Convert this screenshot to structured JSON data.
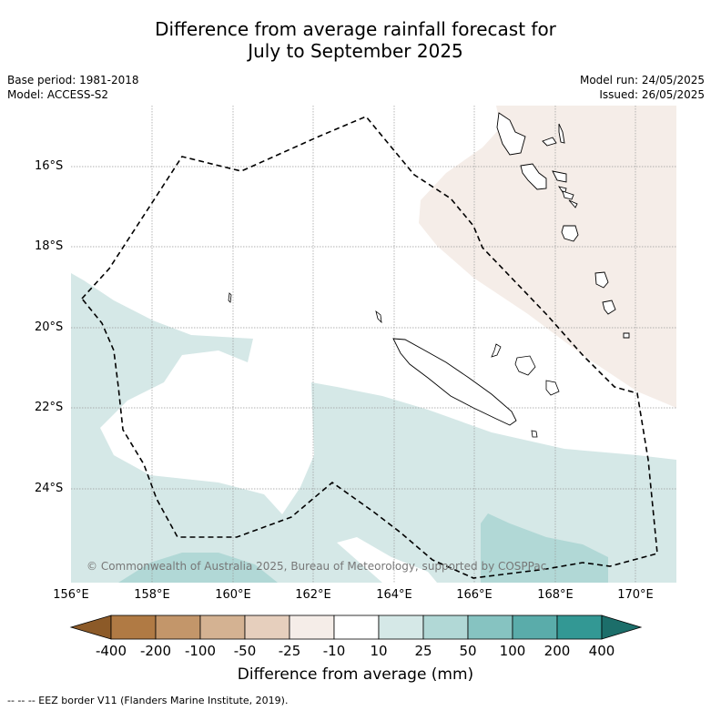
{
  "title_line1": "Difference from average rainfall forecast for",
  "title_line2": "July to September 2025",
  "base_period": "Base period: 1981-2018",
  "model": "Model: ACCESS-S2",
  "model_run": "Model run: 24/05/2025",
  "issued": "Issued: 26/05/2025",
  "copyright": "© Commonwealth of Australia 2025, Bureau of Meteorology, supported by COSPPac",
  "lat_labels": [
    "16°S",
    "18°S",
    "20°S",
    "22°S",
    "24°S"
  ],
  "lon_labels": [
    "156°E",
    "158°E",
    "160°E",
    "162°E",
    "164°E",
    "166°E",
    "168°E",
    "170°E"
  ],
  "colorbar": {
    "title": "Difference from average (mm)",
    "tick_labels": [
      "-400",
      "-200",
      "-100",
      "-50",
      "-25",
      "-10",
      "10",
      "25",
      "50",
      "100",
      "200",
      "400"
    ],
    "colors": [
      "#8c5a28",
      "#b07a44",
      "#c3966a",
      "#d4b292",
      "#e6cfbd",
      "#f5ede8",
      "#ffffff",
      "#d5e8e7",
      "#b1d8d6",
      "#86c3c1",
      "#5aacaa",
      "#339894",
      "#1c6e6a"
    ]
  },
  "footnote": "--  --  -- EEZ border V11 (Flanders Marine Institute, 2019).",
  "colors": {
    "drier_light": "#f5ede8",
    "wetter_10_25": "#d5e8e7",
    "wetter_25_50": "#b1d8d6"
  }
}
